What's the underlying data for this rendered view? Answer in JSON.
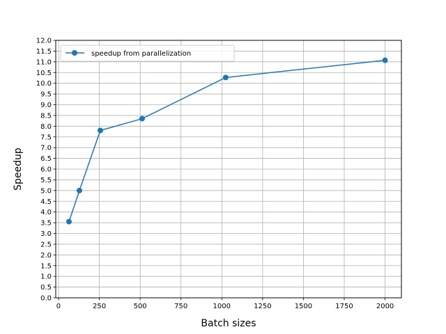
{
  "chart_data": {
    "type": "line",
    "title": "",
    "xlabel": "Batch sizes",
    "ylabel": "Speedup",
    "xlim": [
      -17,
      2100
    ],
    "ylim": [
      0,
      12
    ],
    "xticks": [
      0,
      250,
      500,
      750,
      1000,
      1250,
      1500,
      1750,
      2000
    ],
    "yticks": [
      0.0,
      0.5,
      1.0,
      1.5,
      2.0,
      2.5,
      3.0,
      3.5,
      4.0,
      4.5,
      5.0,
      5.5,
      6.0,
      6.5,
      7.0,
      7.5,
      8.0,
      8.5,
      9.0,
      9.5,
      10.0,
      10.5,
      11.0,
      11.5,
      12.0
    ],
    "xtick_labels": [
      "0",
      "250",
      "500",
      "750",
      "1000",
      "1250",
      "1500",
      "1750",
      "2000"
    ],
    "ytick_labels": [
      "0.0",
      "0.5",
      "1.0",
      "1.5",
      "2.0",
      "2.5",
      "3.0",
      "3.5",
      "4.0",
      "4.5",
      "5.0",
      "5.5",
      "6.0",
      "6.5",
      "7.0",
      "7.5",
      "8.0",
      "8.5",
      "9.0",
      "9.5",
      "10.0",
      "10.5",
      "11.0",
      "11.5",
      "12.0"
    ],
    "grid": true,
    "legend_position": "top-left",
    "series": [
      {
        "name": "speedup from parallelization",
        "color": "#1f77b4",
        "marker": "circle",
        "x": [
          64,
          128,
          256,
          512,
          1024,
          2000
        ],
        "y": [
          3.55,
          5.0,
          7.8,
          8.35,
          10.27,
          11.07
        ]
      }
    ]
  }
}
